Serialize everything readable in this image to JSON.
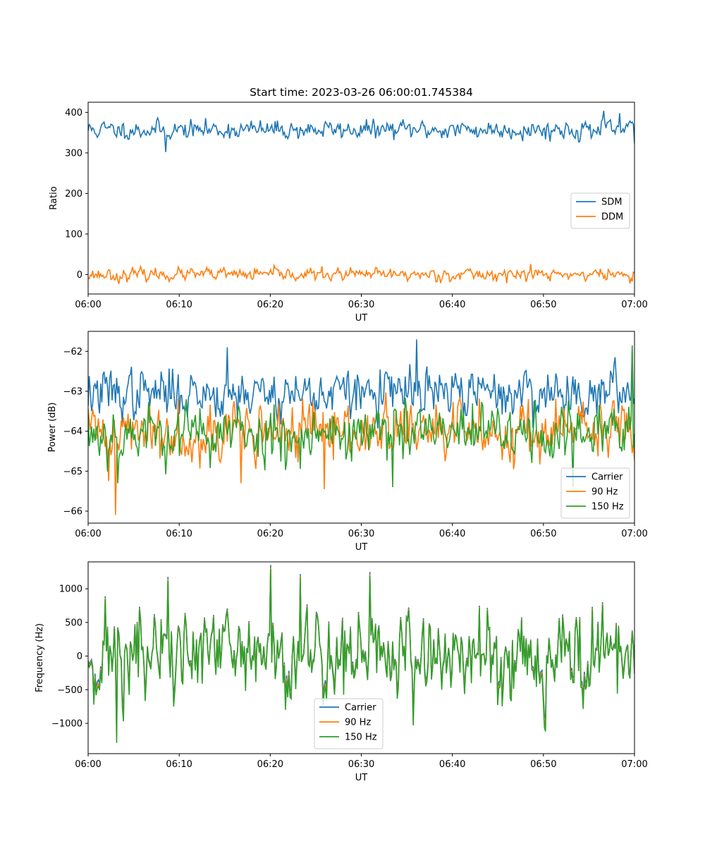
{
  "colors": {
    "c0": "#1f77b4",
    "c1": "#ff7f0e",
    "c2": "#2ca02c"
  },
  "chart_data": [
    {
      "type": "line",
      "title": "Start time: 2023-03-26 06:00:01.745384",
      "xlabel": "UT",
      "ylabel": "Ratio",
      "x_range": [
        "06:00",
        "07:00"
      ],
      "x_ticks": [
        "06:00",
        "06:10",
        "06:20",
        "06:30",
        "06:40",
        "06:50",
        "07:00"
      ],
      "ylim": [
        -48,
        425
      ],
      "y_ticks": [
        0,
        100,
        200,
        300,
        400
      ],
      "grid": false,
      "legend_position": "center-right",
      "series": [
        {
          "name": "SDM",
          "color": "#1f77b4",
          "mean": 357,
          "noise": 12,
          "seed": 11,
          "events": [
            {
              "t": 8.5,
              "value": 302
            },
            {
              "t": 56.6,
              "value": 404
            },
            {
              "t": 58.4,
              "value": 398
            },
            {
              "t": 60,
              "value": 323
            }
          ]
        },
        {
          "name": "DDM",
          "color": "#ff7f0e",
          "mean": 0,
          "noise": 8,
          "seed": 23,
          "events": [
            {
              "t": 3.4,
              "value": -23
            },
            {
              "t": 48.6,
              "value": 26
            },
            {
              "t": 59.5,
              "value": -22
            }
          ]
        }
      ]
    },
    {
      "type": "line",
      "title": "",
      "xlabel": "UT",
      "ylabel": "Power (dB)",
      "x_range": [
        "06:00",
        "07:00"
      ],
      "x_ticks": [
        "06:00",
        "06:10",
        "06:20",
        "06:30",
        "06:40",
        "06:50",
        "07:00"
      ],
      "ylim": [
        -66.3,
        -61.5
      ],
      "y_ticks": [
        -66,
        -65,
        -64,
        -63,
        -62
      ],
      "grid": false,
      "legend_position": "lower-right",
      "series": [
        {
          "name": "Carrier",
          "color": "#1f77b4",
          "mean": -63.05,
          "noise": 0.32,
          "seed": 37,
          "events": [
            {
              "t": 15.3,
              "value": -61.9
            },
            {
              "t": 36.1,
              "value": -61.7
            },
            {
              "t": 59.8,
              "value": -61.9
            }
          ]
        },
        {
          "name": "90 Hz",
          "color": "#ff7f0e",
          "mean": -64.0,
          "noise": 0.38,
          "seed": 41,
          "events": [
            {
              "t": 3.0,
              "value": -66.1
            },
            {
              "t": 2.2,
              "value": -65.25
            },
            {
              "t": 25.9,
              "value": -65.45
            },
            {
              "t": 16.8,
              "value": -65.3
            }
          ]
        },
        {
          "name": "150 Hz",
          "color": "#2ca02c",
          "mean": -64.05,
          "noise": 0.38,
          "seed": 53,
          "events": [
            {
              "t": 3.2,
              "value": -65.3
            },
            {
              "t": 33.5,
              "value": -65.4
            },
            {
              "t": 59.7,
              "value": -61.85
            },
            {
              "t": 53.2,
              "value": -65.4
            }
          ]
        }
      ]
    },
    {
      "type": "line",
      "title": "",
      "xlabel": "UT",
      "ylabel": "Frequency (Hz)",
      "x_range": [
        "06:00",
        "07:00"
      ],
      "x_ticks": [
        "06:00",
        "06:10",
        "06:20",
        "06:30",
        "06:40",
        "06:50",
        "07:00"
      ],
      "ylim": [
        -1450,
        1400
      ],
      "y_ticks": [
        -1000,
        -500,
        0,
        500,
        1000
      ],
      "grid": false,
      "legend_position": "lower-center",
      "series": [
        {
          "name": "Carrier",
          "color": "#1f77b4",
          "offset": -60
        },
        {
          "name": "90 Hz",
          "color": "#ff7f0e",
          "offset": -25
        },
        {
          "name": "150 Hz",
          "color": "#2ca02c",
          "offset": 0
        }
      ],
      "shared_signal": {
        "mean": 0,
        "noise": 380,
        "seed": 71,
        "events": [
          {
            "t": 3.1,
            "value": -1290
          },
          {
            "t": 20.0,
            "value": 1290
          },
          {
            "t": 23.3,
            "value": 1160
          },
          {
            "t": 31.0,
            "value": 1190
          },
          {
            "t": 8.8,
            "value": 1120
          },
          {
            "t": 35.7,
            "value": -1030
          }
        ]
      }
    }
  ]
}
